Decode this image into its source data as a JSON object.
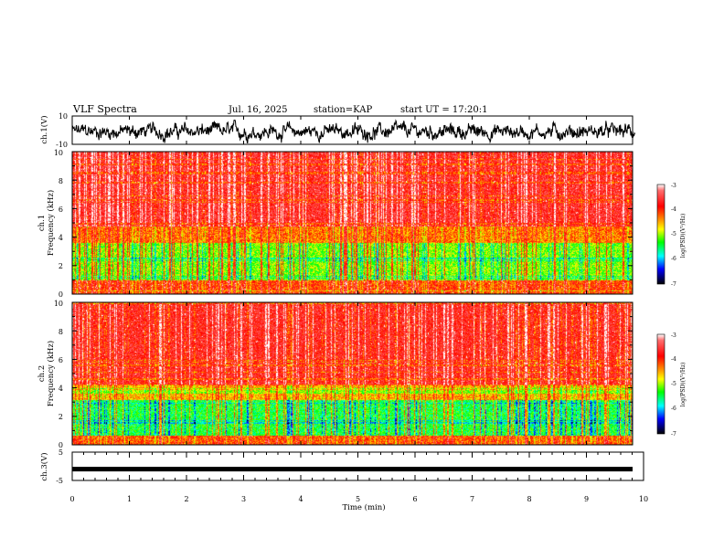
{
  "header": {
    "title": "VLF Spectra",
    "date": "Jul. 16, 2025",
    "station": "station=KAP",
    "start": "start UT =  17:20:1"
  },
  "chart_data": [
    {
      "type": "line",
      "title": "ch.1 waveform",
      "ylabel": "ch.1(V)",
      "ylim": [
        -10,
        10
      ],
      "yticks": [
        "10",
        "-10"
      ],
      "xlim": [
        0,
        10
      ],
      "note": "noisy signal mostly between -8 and +6 V"
    },
    {
      "type": "heatmap",
      "title": "ch.1 spectrogram",
      "ylabel": "ch.1\nFrequency (kHz)",
      "ylim": [
        0,
        10
      ],
      "yticks": [
        "0",
        "2",
        "4",
        "6",
        "8",
        "10"
      ],
      "xlim": [
        0,
        9.85
      ],
      "color_scale": {
        "label": "log(PSD)(V²/Hz)",
        "range": [
          -7,
          -3
        ],
        "ticks": [
          "-3",
          "-4",
          "-5",
          "-6",
          "-7"
        ]
      },
      "bands_khz": [
        {
          "from": 4.8,
          "to": 10,
          "level": "high (red)"
        },
        {
          "from": 3.6,
          "to": 4.8,
          "level": "mixed (red/yellow)"
        },
        {
          "from": 1.0,
          "to": 3.6,
          "level": "low (green/yellow)"
        },
        {
          "from": 0,
          "to": 1.0,
          "level": "mixed (orange/red)"
        }
      ]
    },
    {
      "type": "heatmap",
      "title": "ch.2 spectrogram",
      "ylabel": "ch.2\nFrequency (kHz)",
      "ylim": [
        0,
        10
      ],
      "yticks": [
        "0",
        "2",
        "4",
        "6",
        "8",
        "10"
      ],
      "xlim": [
        0,
        9.85
      ],
      "color_scale": {
        "label": "log(PSD)(V²/Hz)",
        "range": [
          -7,
          -3
        ],
        "ticks": [
          "-3",
          "-4",
          "-5",
          "-6",
          "-7"
        ]
      },
      "bands_khz": [
        {
          "from": 4.2,
          "to": 10,
          "level": "high (red)"
        },
        {
          "from": 3.2,
          "to": 4.2,
          "level": "mixed (red/yellow)"
        },
        {
          "from": 0.7,
          "to": 3.2,
          "level": "low (green/cyan)"
        },
        {
          "from": 0,
          "to": 0.7,
          "level": "mixed (orange/red)"
        }
      ]
    },
    {
      "type": "line",
      "title": "ch.3 waveform",
      "ylabel": "ch.3(V)",
      "ylim": [
        -5,
        5
      ],
      "yticks": [
        "5",
        "-5"
      ],
      "xlim": [
        0,
        10
      ],
      "level": -1.0
    }
  ],
  "x_axis": {
    "label": "Time (min)",
    "ticks": [
      "0",
      "1",
      "2",
      "3",
      "4",
      "5",
      "6",
      "7",
      "8",
      "9",
      "10"
    ]
  }
}
